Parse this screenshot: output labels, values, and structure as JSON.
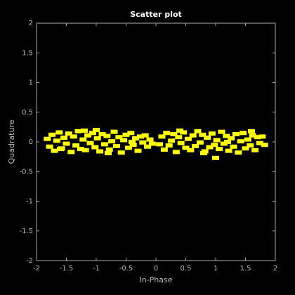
{
  "chart_data": {
    "type": "scatter",
    "title": "Scatter plot",
    "x_label": "In-Phase",
    "y_label": "Quadrature",
    "series": [
      {
        "color": "#ffff00",
        "x": [
          -1.82,
          -1.78,
          -1.74,
          -1.7,
          -1.66,
          -1.62,
          -1.58,
          -1.54,
          -1.5,
          -1.46,
          -1.42,
          -1.38,
          -1.34,
          -1.3,
          -1.26,
          -1.22,
          -1.18,
          -1.14,
          -1.1,
          -1.06,
          -1.02,
          -0.98,
          -0.94,
          -0.9,
          -0.86,
          -0.82,
          -0.78,
          -0.74,
          -0.7,
          -0.66,
          -0.62,
          -0.58,
          -0.54,
          -0.5,
          -0.46,
          -0.42,
          -0.38,
          -0.34,
          -0.3,
          -0.26,
          -0.22,
          -0.18,
          -0.14,
          -0.1,
          -0.06,
          -1.6,
          -1.2,
          -0.8,
          -0.4,
          -1.0,
          0.06,
          0.1,
          0.14,
          0.18,
          0.22,
          0.26,
          0.3,
          0.34,
          0.38,
          0.42,
          0.46,
          0.5,
          0.54,
          0.58,
          0.62,
          0.66,
          0.7,
          0.74,
          0.78,
          0.82,
          0.86,
          0.9,
          0.94,
          0.98,
          1.02,
          1.06,
          1.1,
          1.14,
          1.18,
          1.22,
          1.26,
          1.3,
          1.34,
          1.38,
          1.42,
          1.46,
          1.5,
          1.54,
          1.58,
          1.62,
          1.66,
          1.7,
          1.74,
          1.78,
          1.82,
          0.4,
          0.8,
          1.2,
          1.6,
          1.0
        ],
        "values": [
          0.05,
          -0.08,
          0.12,
          -0.15,
          0.02,
          0.16,
          -0.11,
          0.07,
          -0.03,
          0.14,
          -0.17,
          0.09,
          -0.06,
          0.18,
          -0.12,
          0.04,
          -0.14,
          0.11,
          -0.02,
          0.15,
          -0.09,
          0.06,
          -0.16,
          0.13,
          -0.04,
          0.1,
          -0.13,
          0.01,
          0.17,
          -0.07,
          0.08,
          -0.18,
          0.03,
          0.12,
          -0.1,
          0.15,
          -0.05,
          0.06,
          -0.15,
          0.09,
          -0.01,
          0.11,
          -0.08,
          0.04,
          -0.03,
          -0.12,
          0.19,
          -0.19,
          0.0,
          0.2,
          -0.04,
          0.09,
          -0.13,
          0.15,
          -0.06,
          0.02,
          0.13,
          -0.17,
          0.08,
          -0.02,
          0.16,
          -0.1,
          0.05,
          -0.14,
          0.11,
          -0.07,
          0.18,
          -0.01,
          0.12,
          -0.16,
          0.07,
          -0.09,
          0.14,
          -0.05,
          0.03,
          -0.12,
          0.17,
          -0.03,
          0.1,
          -0.15,
          0.06,
          -0.08,
          0.13,
          -0.18,
          0.01,
          0.15,
          -0.11,
          0.04,
          -0.06,
          0.11,
          -0.14,
          0.08,
          -0.02,
          0.09,
          -0.05,
          0.19,
          -0.19,
          0.0,
          0.18,
          -0.27
        ]
      }
    ],
    "xlim": [
      -2,
      2
    ],
    "ylim": [
      -2,
      2
    ],
    "xticks": [
      -2,
      -1.5,
      -1,
      -0.5,
      0,
      0.5,
      1,
      1.5,
      2
    ],
    "yticks": [
      -2,
      -1.5,
      -1,
      -0.5,
      0,
      0.5,
      1,
      1.5,
      2
    ],
    "grid": false
  }
}
